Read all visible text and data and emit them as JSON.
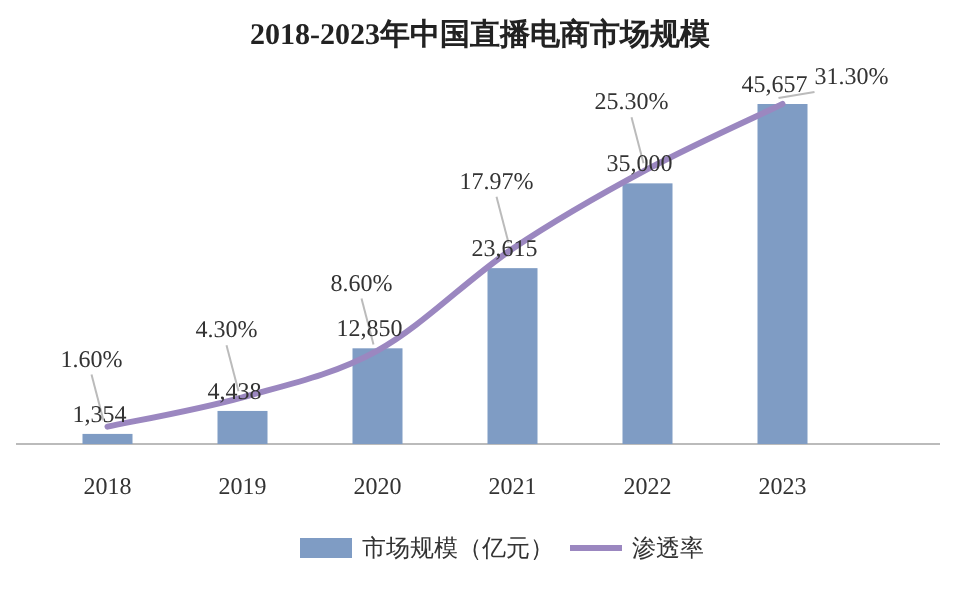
{
  "chart_data": {
    "type": "bar",
    "title": "2018-2023年中国直播电商市场规模",
    "categories": [
      "2018",
      "2019",
      "2020",
      "2021",
      "2022",
      "2023"
    ],
    "series": [
      {
        "name": "市场规模（亿元）",
        "color": "#7f9cc4",
        "values": [
          1354,
          4438,
          12850,
          23615,
          35000,
          45657
        ],
        "value_labels": [
          "1,354",
          "4,438",
          "12,850",
          "23,615",
          "35,000",
          "45,657"
        ]
      },
      {
        "name": "渗透率",
        "type": "line",
        "axis": "y2",
        "color": "#9b87c0",
        "values": [
          1.6,
          4.3,
          8.6,
          17.97,
          25.3,
          31.3
        ],
        "value_labels": [
          "1.60%",
          "4.30%",
          "8.60%",
          "17.97%",
          "25.30%",
          "31.30%"
        ]
      }
    ],
    "legend": "bottom",
    "marker": "none",
    "line_style": "solid"
  }
}
